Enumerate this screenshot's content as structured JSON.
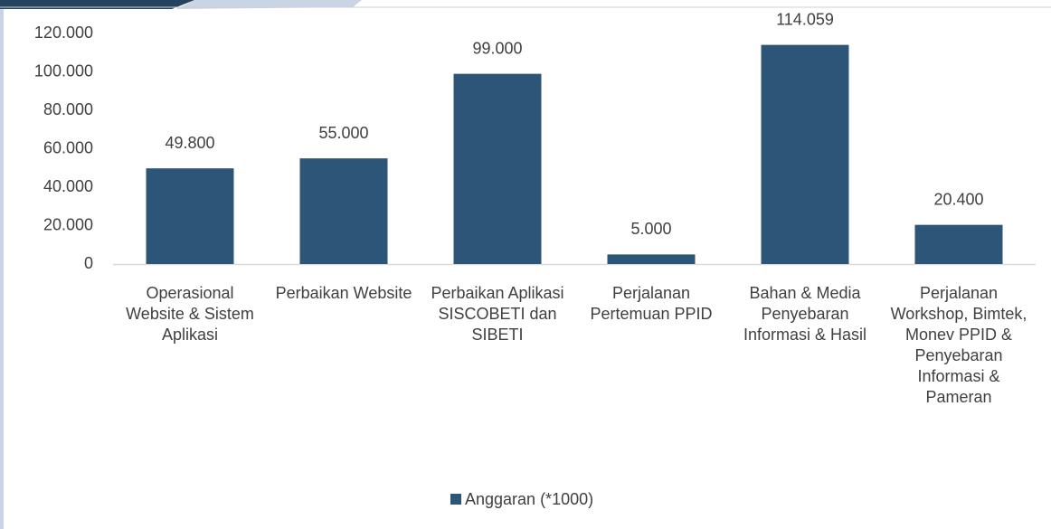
{
  "chart_data": {
    "type": "bar",
    "categories": [
      "Operasional Website & Sistem Aplikasi",
      "Perbaikan Website",
      "Perbaikan Aplikasi SISCOBETI dan SIBETI",
      "Perjalanan Pertemuan PPID",
      "Bahan & Media Penyebaran Informasi & Hasil",
      "Perjalanan Workshop, Bimtek, Monev PPID & Penyebaran Informasi & Pameran"
    ],
    "series": [
      {
        "name": "Anggaran (*1000)",
        "color": "#2c5577",
        "values": [
          49800,
          55000,
          99000,
          5000,
          114059,
          20400
        ],
        "value_labels": [
          "49.800",
          "55.000",
          "99.000",
          "5.000",
          "114.059",
          "20.400"
        ]
      }
    ],
    "ylim": [
      0,
      120000
    ],
    "yticks": [
      {
        "value": 0,
        "label": "0"
      },
      {
        "value": 20000,
        "label": "20.000"
      },
      {
        "value": 40000,
        "label": "40.000"
      },
      {
        "value": 60000,
        "label": "60.000"
      },
      {
        "value": 80000,
        "label": "80.000"
      },
      {
        "value": 100000,
        "label": "100.000"
      },
      {
        "value": 120000,
        "label": "120.000"
      }
    ],
    "grid": false,
    "legend": "bottom"
  }
}
